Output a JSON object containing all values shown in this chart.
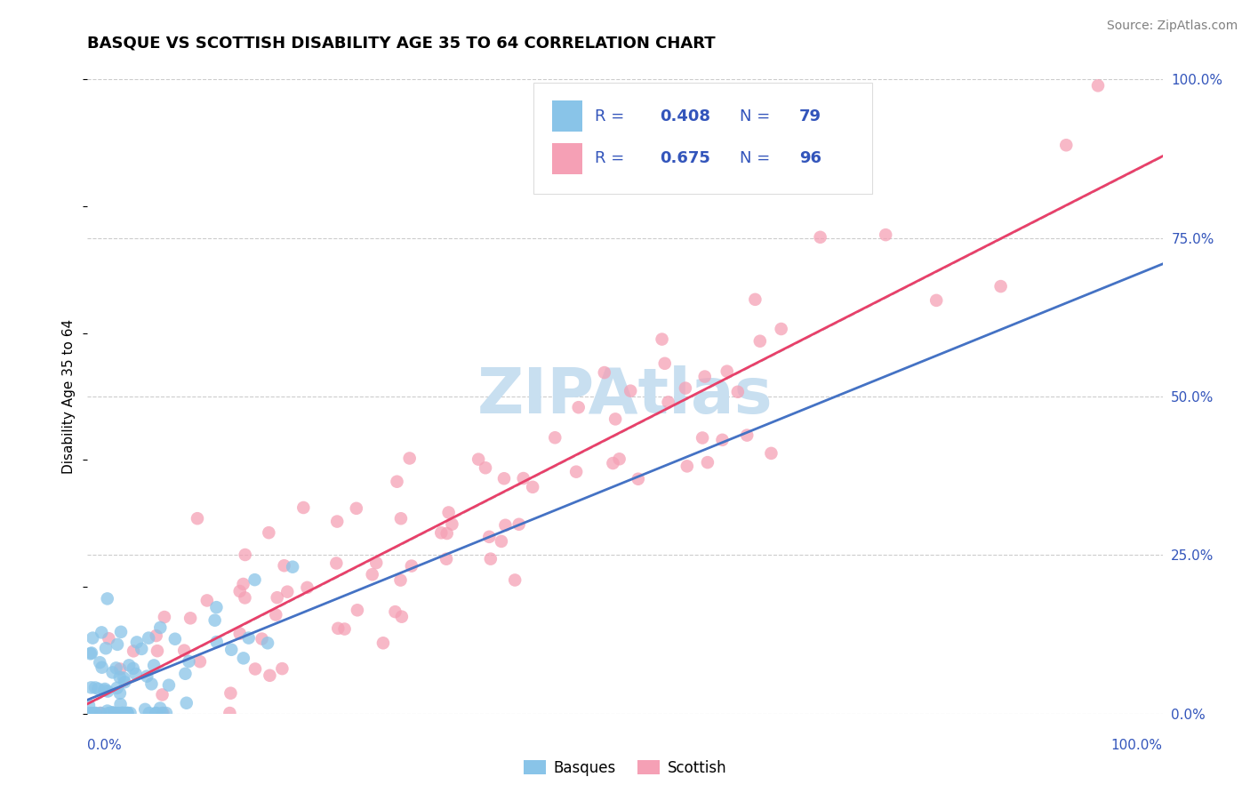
{
  "title": "BASQUE VS SCOTTISH DISABILITY AGE 35 TO 64 CORRELATION CHART",
  "source": "Source: ZipAtlas.com",
  "ylabel": "Disability Age 35 to 64",
  "ytick_values": [
    0.0,
    0.25,
    0.5,
    0.75,
    1.0
  ],
  "xlim": [
    0.0,
    1.0
  ],
  "ylim": [
    0.0,
    1.0
  ],
  "color_basque": "#89C4E8",
  "color_scottish": "#F5A0B5",
  "color_line_basque": "#4472C4",
  "color_line_scottish": "#E8406A",
  "color_trend": "#BBBBBB",
  "watermark": "ZIPAtlas",
  "title_fontsize": 13,
  "axis_fontsize": 11,
  "tick_fontsize": 11,
  "source_fontsize": 10,
  "watermark_fontsize": 52,
  "watermark_color": "#C8DFF0",
  "legend_color": "#3355BB",
  "background_color": "#FFFFFF",
  "grid_color": "#CCCCCC"
}
